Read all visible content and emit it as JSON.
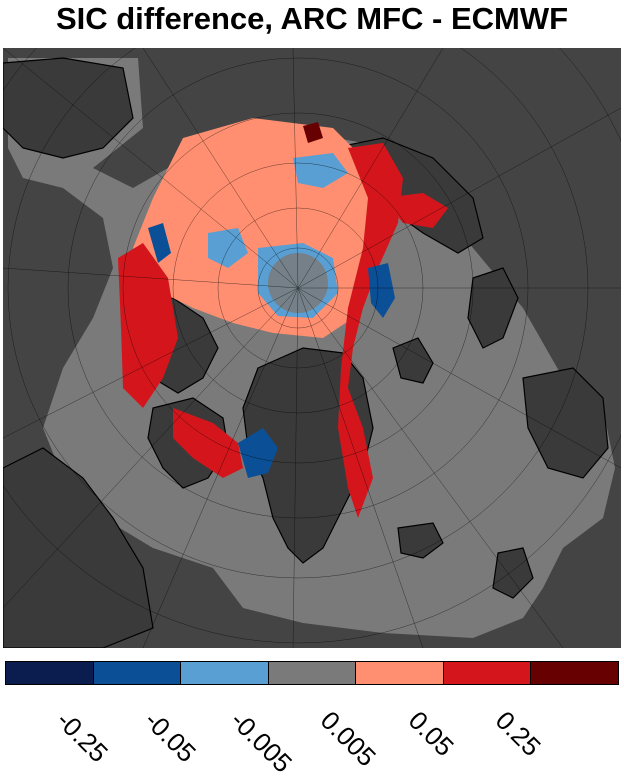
{
  "title": "SIC difference, ARC MFC - ECMWF",
  "colors": {
    "background": "#444444",
    "land": "#3a3a3a",
    "ocean_gray": "#7a7a7a",
    "coast": "#000000"
  },
  "colorbar": {
    "colors": [
      "#0b1d4f",
      "#0b4f96",
      "#5a9fd3",
      "#7a7a7a",
      "#ff8f70",
      "#d4161c",
      "#670000"
    ],
    "tick_labels": [
      "-0.25",
      "-0.05",
      "-0.005",
      "0.005",
      "0.05",
      "0.25"
    ]
  }
}
